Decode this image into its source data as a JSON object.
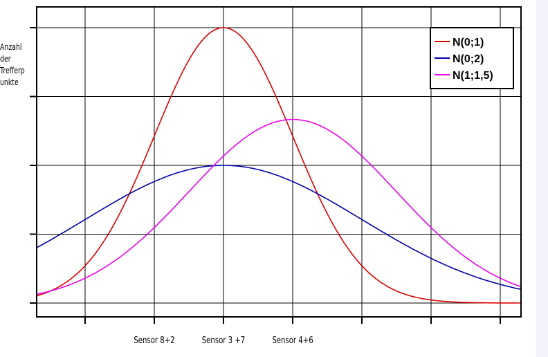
{
  "chart_data": {
    "type": "line",
    "xlim": [
      -2.7,
      4.3
    ],
    "ylim": [
      0,
      1
    ],
    "grid": true,
    "legend_placement": "top-right",
    "ylabel_lines": [
      "Anzahl",
      "der",
      "Trefferp",
      "unkte"
    ],
    "x_tick_labels": [
      {
        "x": -1,
        "label": "Sensor 8+2"
      },
      {
        "x": 0,
        "label": "Sensor 3 +7"
      },
      {
        "x": 1,
        "label": "Sensor 4+6"
      }
    ],
    "series": [
      {
        "name": "N(0;1)",
        "color": "#dd0000",
        "mu": 0,
        "sigma": 1
      },
      {
        "name": "N(0;2)",
        "color": "#0000aa",
        "mu": 0,
        "sigma": 2
      },
      {
        "name": "N(1;1,5)",
        "color": "#ee00ee",
        "mu": 1,
        "sigma": 1.5
      }
    ]
  }
}
